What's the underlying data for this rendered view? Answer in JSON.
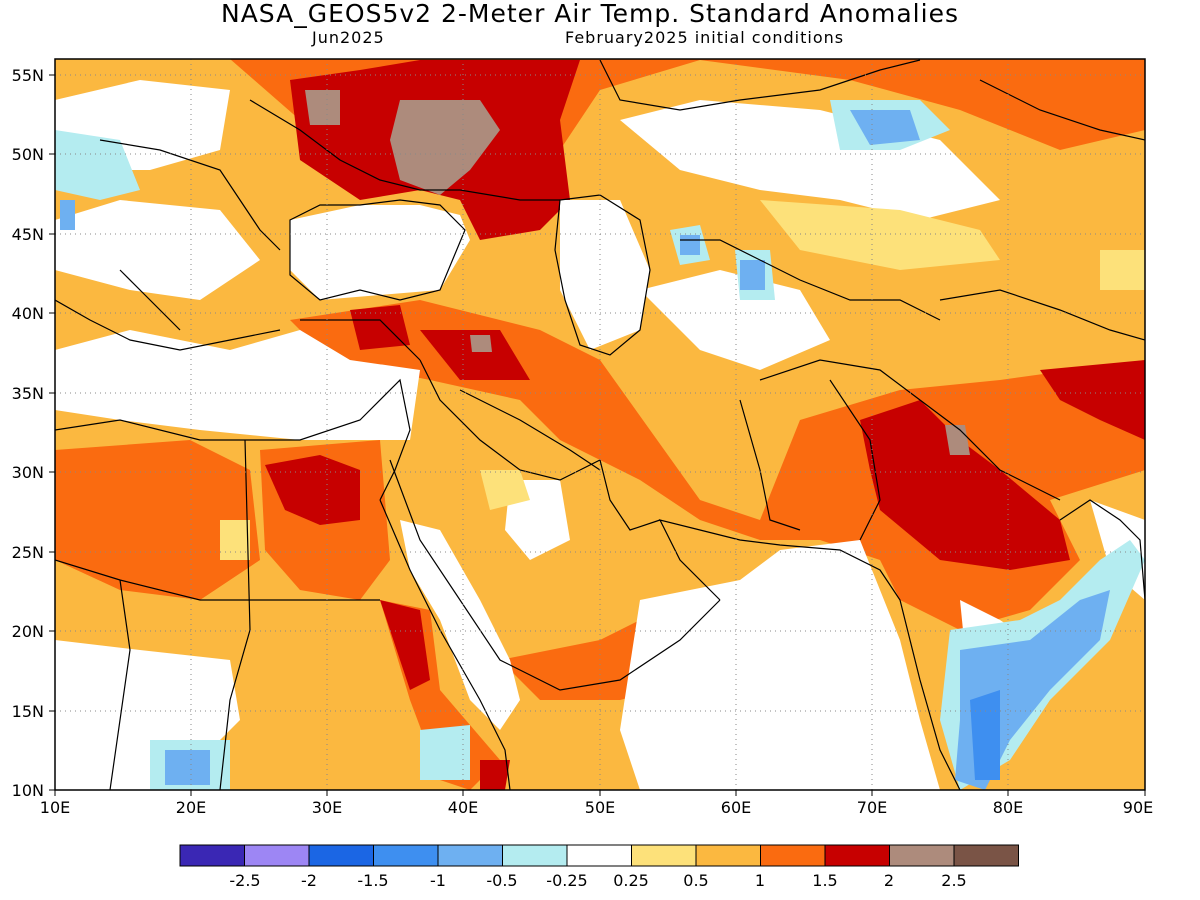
{
  "title": "NASA_GEOS5v2 2-Meter Air Temp. Standard Anomalies",
  "subtitle_left": "Jun2025",
  "subtitle_right": "February2025 initial conditions",
  "axes": {
    "lat_labels": [
      "55N",
      "50N",
      "45N",
      "40N",
      "35N",
      "30N",
      "25N",
      "20N",
      "15N",
      "10N"
    ],
    "lon_labels": [
      "10E",
      "20E",
      "30E",
      "40E",
      "50E",
      "60E",
      "70E",
      "80E",
      "90E"
    ],
    "lat_range": [
      10,
      56
    ],
    "lon_range": [
      10,
      90
    ],
    "grid": "dotted"
  },
  "colorbar": {
    "colors": [
      "#3a27b4",
      "#9d86f4",
      "#1b66e4",
      "#3e8ff0",
      "#6eb0f1",
      "#b4ecf0",
      "#ffffff",
      "#fde17a",
      "#fbb840",
      "#fa6b10",
      "#c70000",
      "#ad8b7c",
      "#7a5446"
    ],
    "labels": [
      "-2.5",
      "-2",
      "-1.5",
      "-1",
      "-0.5",
      "-0.25",
      "0.25",
      "0.5",
      "1",
      "1.5",
      "2",
      "2.5"
    ]
  }
}
